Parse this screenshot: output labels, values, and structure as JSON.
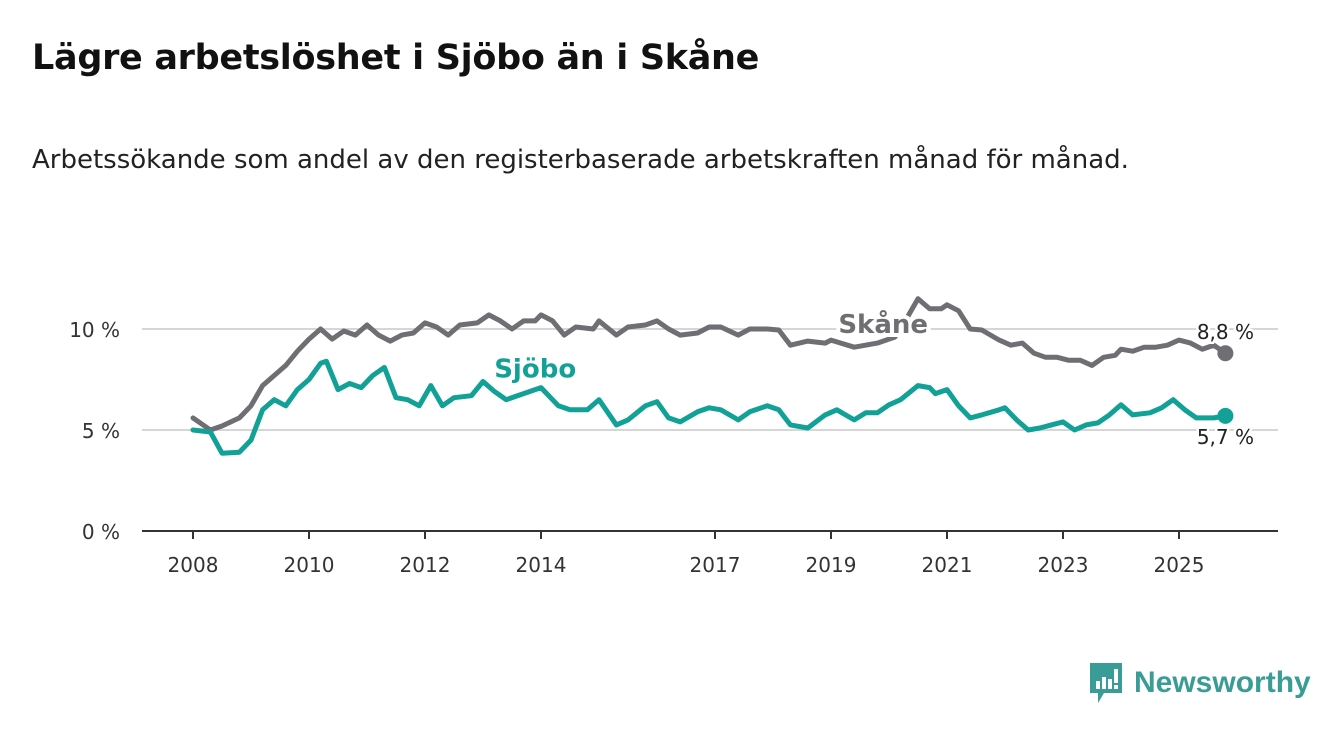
{
  "title": "Lägre arbetslöshet i Sjöbo än i Skåne",
  "subtitle": "Arbetssökande som andel av den registerbaserade arbetskraften månad för månad.",
  "brand": {
    "name": "Newsworthy",
    "color": "#3a9c96"
  },
  "chart_data": {
    "type": "line",
    "title": "Lägre arbetslöshet i Sjöbo än i Skåne",
    "xlabel": "",
    "ylabel": "",
    "xlim": [
      2007.75,
      2026.65
    ],
    "ylim": [
      0,
      12
    ],
    "x_ticks": [
      {
        "value": 2008,
        "label": "2008"
      },
      {
        "value": 2010,
        "label": "2010"
      },
      {
        "value": 2012,
        "label": "2012"
      },
      {
        "value": 2014,
        "label": "2014"
      },
      {
        "value": 2017,
        "label": "2017"
      },
      {
        "value": 2019,
        "label": "2019"
      },
      {
        "value": 2021,
        "label": "2021"
      },
      {
        "value": 2023,
        "label": "2023"
      },
      {
        "value": 2025,
        "label": "2025"
      }
    ],
    "y_ticks": [
      {
        "value": 0,
        "label": "0 %"
      },
      {
        "value": 5,
        "label": "5 %"
      },
      {
        "value": 10,
        "label": "10 %"
      }
    ],
    "grid": true,
    "series": [
      {
        "name": "Skåne",
        "color": "#6e6e73",
        "end_label": "8,8 %",
        "label_at": [
          2019.9,
          9.8
        ],
        "x": [
          2008.0,
          2008.3,
          2008.5,
          2008.8,
          2009.0,
          2009.2,
          2009.4,
          2009.6,
          2009.8,
          2010.0,
          2010.2,
          2010.4,
          2010.6,
          2010.8,
          2011.0,
          2011.2,
          2011.4,
          2011.6,
          2011.8,
          2012.0,
          2012.2,
          2012.4,
          2012.6,
          2012.9,
          2013.1,
          2013.3,
          2013.5,
          2013.7,
          2013.9,
          2014.0,
          2014.2,
          2014.4,
          2014.6,
          2014.9,
          2015.0,
          2015.3,
          2015.5,
          2015.8,
          2016.0,
          2016.2,
          2016.4,
          2016.7,
          2016.9,
          2017.1,
          2017.4,
          2017.6,
          2017.9,
          2018.1,
          2018.3,
          2018.6,
          2018.9,
          2019.0,
          2019.4,
          2019.8,
          2020.1,
          2020.3,
          2020.5,
          2020.7,
          2020.9,
          2021.0,
          2021.2,
          2021.4,
          2021.6,
          2021.9,
          2022.1,
          2022.3,
          2022.5,
          2022.7,
          2022.9,
          2023.1,
          2023.3,
          2023.5,
          2023.7,
          2023.9,
          2024.0,
          2024.2,
          2024.4,
          2024.6,
          2024.8,
          2025.0,
          2025.2,
          2025.4,
          2025.6,
          2025.8
        ],
        "y": [
          5.6,
          5.0,
          5.2,
          5.6,
          6.2,
          7.2,
          7.7,
          8.2,
          8.9,
          9.5,
          10.0,
          9.5,
          9.9,
          9.7,
          10.2,
          9.7,
          9.4,
          9.7,
          9.8,
          10.3,
          10.1,
          9.7,
          10.2,
          10.3,
          10.7,
          10.4,
          10.0,
          10.4,
          10.4,
          10.7,
          10.4,
          9.7,
          10.1,
          10.0,
          10.4,
          9.7,
          10.1,
          10.2,
          10.4,
          10.0,
          9.7,
          9.8,
          10.1,
          10.1,
          9.7,
          10.0,
          10.0,
          9.95,
          9.2,
          9.4,
          9.3,
          9.45,
          9.1,
          9.3,
          9.6,
          10.5,
          11.5,
          11.0,
          11.0,
          11.2,
          10.9,
          10.0,
          9.95,
          9.45,
          9.2,
          9.3,
          8.8,
          8.6,
          8.6,
          8.45,
          8.45,
          8.2,
          8.6,
          8.7,
          9.0,
          8.9,
          9.1,
          9.1,
          9.2,
          9.45,
          9.3,
          9.0,
          9.2,
          8.8
        ]
      },
      {
        "name": "Sjöbo",
        "color": "#12a196",
        "end_label": "5,7 %",
        "label_at": [
          2013.9,
          7.6
        ],
        "x": [
          2008.0,
          2008.3,
          2008.5,
          2008.8,
          2009.0,
          2009.2,
          2009.4,
          2009.6,
          2009.8,
          2010.0,
          2010.2,
          2010.3,
          2010.5,
          2010.7,
          2010.9,
          2011.1,
          2011.3,
          2011.5,
          2011.7,
          2011.9,
          2012.1,
          2012.3,
          2012.5,
          2012.8,
          2013.0,
          2013.2,
          2013.4,
          2013.7,
          2014.0,
          2014.3,
          2014.5,
          2014.8,
          2015.0,
          2015.3,
          2015.5,
          2015.8,
          2016.0,
          2016.2,
          2016.4,
          2016.7,
          2016.9,
          2017.1,
          2017.4,
          2017.6,
          2017.9,
          2018.1,
          2018.3,
          2018.6,
          2018.9,
          2019.1,
          2019.4,
          2019.6,
          2019.8,
          2020.0,
          2020.2,
          2020.5,
          2020.7,
          2020.8,
          2021.0,
          2021.2,
          2021.4,
          2021.6,
          2021.9,
          2022.0,
          2022.2,
          2022.4,
          2022.6,
          2022.8,
          2023.0,
          2023.2,
          2023.4,
          2023.6,
          2023.8,
          2024.0,
          2024.2,
          2024.5,
          2024.7,
          2024.9,
          2025.1,
          2025.3,
          2025.6,
          2025.8
        ],
        "y": [
          5.0,
          4.9,
          3.85,
          3.9,
          4.5,
          6.0,
          6.5,
          6.2,
          7.0,
          7.5,
          8.3,
          8.4,
          7.0,
          7.3,
          7.1,
          7.7,
          8.1,
          6.6,
          6.5,
          6.2,
          7.2,
          6.2,
          6.6,
          6.7,
          7.4,
          6.9,
          6.5,
          6.8,
          7.1,
          6.2,
          6.0,
          6.0,
          6.5,
          5.25,
          5.5,
          6.2,
          6.4,
          5.6,
          5.4,
          5.9,
          6.1,
          6.0,
          5.5,
          5.9,
          6.2,
          6.0,
          5.25,
          5.1,
          5.75,
          6.0,
          5.5,
          5.85,
          5.85,
          6.25,
          6.5,
          7.2,
          7.1,
          6.8,
          7.0,
          6.2,
          5.6,
          5.75,
          6.0,
          6.1,
          5.5,
          5.0,
          5.1,
          5.25,
          5.4,
          5.0,
          5.25,
          5.35,
          5.75,
          6.25,
          5.75,
          5.85,
          6.1,
          6.5,
          6.0,
          5.6,
          5.6,
          5.7
        ]
      }
    ]
  }
}
